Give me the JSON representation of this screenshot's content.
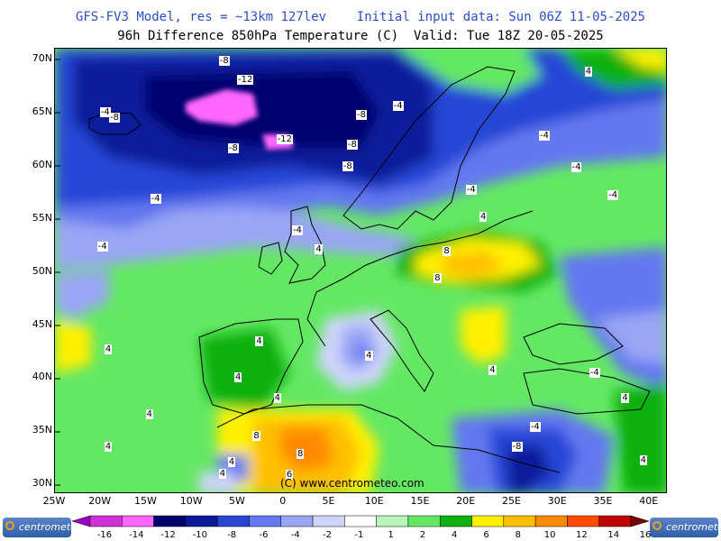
{
  "header": {
    "title_line1": "GFS-FV3 Model, res = ~13km 127lev    Initial input data: Sun 06Z 11-05-2025",
    "title_line2": "96h Difference 850hPa Temperature (C)  Valid: Tue 18Z 20-05-2025"
  },
  "axes": {
    "lat_labels": [
      "70N",
      "65N",
      "60N",
      "55N",
      "50N",
      "45N",
      "40N",
      "35N",
      "30N"
    ],
    "lon_labels": [
      "25W",
      "20W",
      "15W",
      "10W",
      "5W",
      "0",
      "5E",
      "10E",
      "15E",
      "20E",
      "25E",
      "30E",
      "35E",
      "40E"
    ]
  },
  "contour_labels": [
    {
      "text": "-8",
      "lon": -6.5,
      "lat": 69.8
    },
    {
      "text": "-12",
      "lon": -4.5,
      "lat": 68.0
    },
    {
      "text": "-4",
      "lon": -19.5,
      "lat": 65.0
    },
    {
      "text": "-8",
      "lon": -18.5,
      "lat": 64.5
    },
    {
      "text": "-12",
      "lon": -0.2,
      "lat": 62.4
    },
    {
      "text": "-8",
      "lon": -5.5,
      "lat": 61.6
    },
    {
      "text": "-8",
      "lon": 8.5,
      "lat": 64.7
    },
    {
      "text": "-4",
      "lon": 12.5,
      "lat": 65.6
    },
    {
      "text": "-8",
      "lon": 7.5,
      "lat": 61.9
    },
    {
      "text": "-8",
      "lon": 7.0,
      "lat": 59.9
    },
    {
      "text": "4",
      "lon": 33.5,
      "lat": 68.8
    },
    {
      "text": "-4",
      "lon": 28.5,
      "lat": 62.8
    },
    {
      "text": "-4",
      "lon": 32.0,
      "lat": 59.8
    },
    {
      "text": "-4",
      "lon": 36.0,
      "lat": 57.2
    },
    {
      "text": "-4",
      "lon": 20.5,
      "lat": 57.7
    },
    {
      "text": "-4",
      "lon": -14.0,
      "lat": 56.8
    },
    {
      "text": "4",
      "lon": 22.0,
      "lat": 55.1
    },
    {
      "text": "-4",
      "lon": 1.5,
      "lat": 53.9
    },
    {
      "text": "-4",
      "lon": -19.8,
      "lat": 52.3
    },
    {
      "text": "4",
      "lon": 4.0,
      "lat": 52.1
    },
    {
      "text": "8",
      "lon": 18.0,
      "lat": 51.9
    },
    {
      "text": "8",
      "lon": 17.0,
      "lat": 49.4
    },
    {
      "text": "4",
      "lon": -19.0,
      "lat": 42.7
    },
    {
      "text": "4",
      "lon": -2.5,
      "lat": 43.4
    },
    {
      "text": "4",
      "lon": -4.8,
      "lat": 40.0
    },
    {
      "text": "4",
      "lon": -0.5,
      "lat": 38.1
    },
    {
      "text": "4",
      "lon": 9.5,
      "lat": 42.1
    },
    {
      "text": "4",
      "lon": 23.0,
      "lat": 40.7
    },
    {
      "text": "-4",
      "lon": 34.0,
      "lat": 40.5
    },
    {
      "text": "4",
      "lon": 37.5,
      "lat": 38.1
    },
    {
      "text": "4",
      "lon": -14.5,
      "lat": 36.6
    },
    {
      "text": "4",
      "lon": -19.0,
      "lat": 33.5
    },
    {
      "text": "-4",
      "lon": 27.5,
      "lat": 35.4
    },
    {
      "text": "-8",
      "lon": 25.5,
      "lat": 33.5
    },
    {
      "text": "8",
      "lon": -2.8,
      "lat": 34.5
    },
    {
      "text": "8",
      "lon": 2.0,
      "lat": 32.8
    },
    {
      "text": "4",
      "lon": -5.5,
      "lat": 32.1
    },
    {
      "text": "4",
      "lon": -6.5,
      "lat": 31.0
    },
    {
      "text": "6",
      "lon": 0.8,
      "lat": 30.9
    },
    {
      "text": "4",
      "lon": 39.5,
      "lat": 32.2
    }
  ],
  "watermark": "(C) www.centrometeo.com",
  "legend": {
    "labels": [
      "-16",
      "-14",
      "-12",
      "-10",
      "-8",
      "-6",
      "-4",
      "-2",
      "-1",
      "1",
      "2",
      "4",
      "6",
      "8",
      "10",
      "12",
      "14",
      "16"
    ],
    "colors": [
      "#9900c0",
      "#d030d8",
      "#ff66ff",
      "#00006e",
      "#0a1a9a",
      "#2846d6",
      "#6478f0",
      "#9aa6f4",
      "#cfd4fa",
      "#ffffff",
      "#b8f5b8",
      "#64e864",
      "#10b010",
      "#fff000",
      "#ffbf00",
      "#ff8a00",
      "#ff4a00",
      "#c00000",
      "#7a0000"
    ]
  },
  "logo_text": "centrometeo"
}
